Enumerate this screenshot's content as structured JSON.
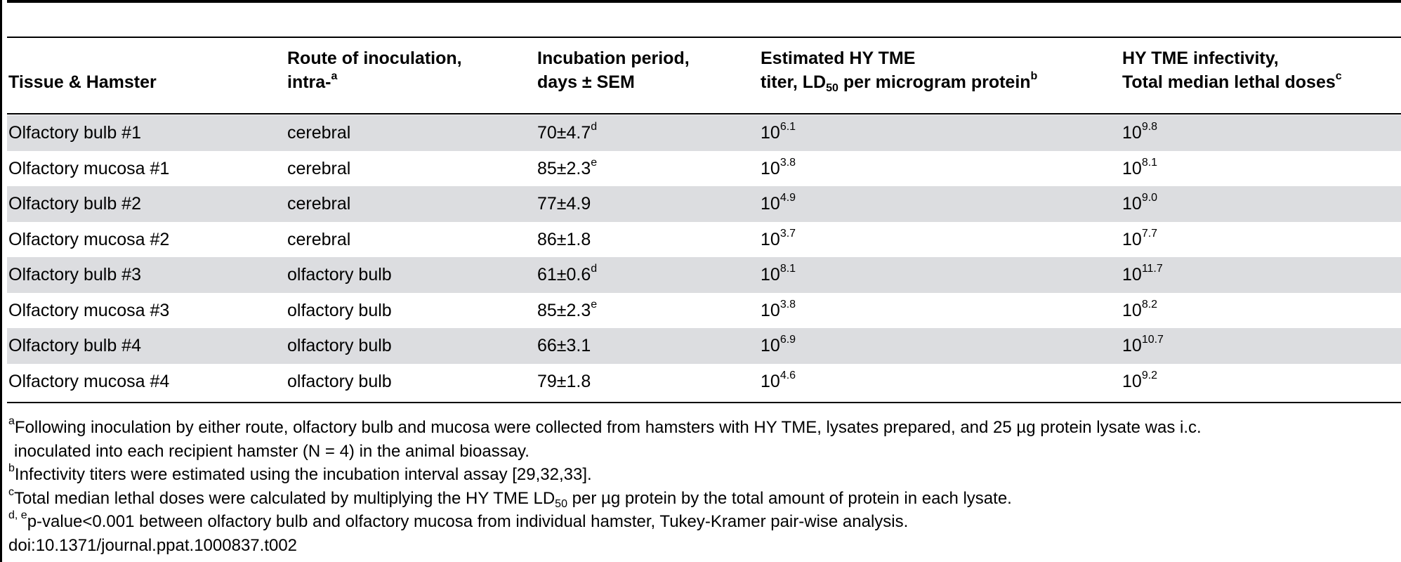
{
  "table": {
    "headers": [
      {
        "lines": [
          "",
          "Tissue & Hamster"
        ],
        "sup": ""
      },
      {
        "lines": [
          "Route of inoculation,",
          "intra-"
        ],
        "sup": "a"
      },
      {
        "lines": [
          "Incubation period,",
          "days ± SEM"
        ],
        "sup": ""
      },
      {
        "lines": [
          "Estimated HY TME",
          "titer, LD"
        ],
        "sub": "50",
        "after": " per microgram protein",
        "sup": "b"
      },
      {
        "lines": [
          "HY TME infectivity,",
          "Total median lethal doses"
        ],
        "sup": "c"
      }
    ],
    "rows": [
      {
        "tissue": "Olfactory bulb #1",
        "route": "cerebral",
        "incubation": "70±4.7",
        "incubation_sup": "d",
        "titer_base": "10",
        "titer_exp": "6.1",
        "doses_base": "10",
        "doses_exp": "9.8"
      },
      {
        "tissue": "Olfactory mucosa #1",
        "route": "cerebral",
        "incubation": "85±2.3",
        "incubation_sup": "e",
        "titer_base": "10",
        "titer_exp": "3.8",
        "doses_base": "10",
        "doses_exp": "8.1"
      },
      {
        "tissue": "Olfactory bulb #2",
        "route": "cerebral",
        "incubation": "77±4.9",
        "incubation_sup": "",
        "titer_base": "10",
        "titer_exp": "4.9",
        "doses_base": "10",
        "doses_exp": "9.0"
      },
      {
        "tissue": "Olfactory mucosa #2",
        "route": "cerebral",
        "incubation": "86±1.8",
        "incubation_sup": "",
        "titer_base": "10",
        "titer_exp": "3.7",
        "doses_base": "10",
        "doses_exp": "7.7"
      },
      {
        "tissue": "Olfactory bulb #3",
        "route": "olfactory bulb",
        "incubation": "61±0.6",
        "incubation_sup": "d",
        "titer_base": "10",
        "titer_exp": "8.1",
        "doses_base": "10",
        "doses_exp": "11.7"
      },
      {
        "tissue": "Olfactory mucosa #3",
        "route": "olfactory bulb",
        "incubation": "85±2.3",
        "incubation_sup": "e",
        "titer_base": "10",
        "titer_exp": "3.8",
        "doses_base": "10",
        "doses_exp": "8.2"
      },
      {
        "tissue": "Olfactory bulb #4",
        "route": "olfactory bulb",
        "incubation": "66±3.1",
        "incubation_sup": "",
        "titer_base": "10",
        "titer_exp": "6.9",
        "doses_base": "10",
        "doses_exp": "10.7"
      },
      {
        "tissue": "Olfactory mucosa #4",
        "route": "olfactory bulb",
        "incubation": "79±1.8",
        "incubation_sup": "",
        "titer_base": "10",
        "titer_exp": "4.6",
        "doses_base": "10",
        "doses_exp": "9.2"
      }
    ]
  },
  "footnotes": {
    "a": {
      "mark": "a",
      "line1": "Following inoculation by either route, olfactory bulb and mucosa were collected from hamsters with HY TME, lysates prepared, and 25 µg protein lysate was i.c.",
      "line2": "inoculated into each recipient hamster (N = 4) in the animal bioassay."
    },
    "b": {
      "mark": "b",
      "text": "Infectivity titers were estimated using the incubation interval assay [29,32,33]."
    },
    "c": {
      "mark": "c",
      "pre": "Total median lethal doses were calculated by multiplying the HY TME LD",
      "sub": "50",
      "post": " per µg protein by the total amount of protein in each lysate."
    },
    "de": {
      "mark": "d, e",
      "text": "p-value<0.001 between olfactory bulb and olfactory mucosa from individual hamster, Tukey-Kramer pair-wise analysis."
    },
    "doi": "doi:10.1371/journal.ppat.1000837.t002"
  }
}
